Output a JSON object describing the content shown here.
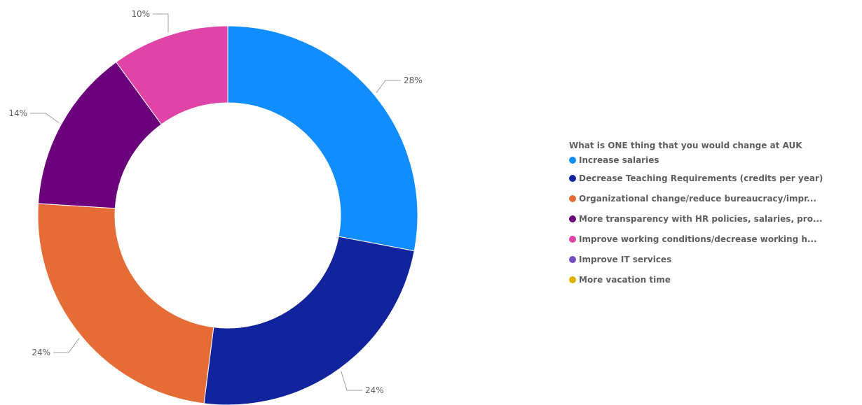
{
  "chart_data": {
    "type": "pie",
    "donut": true,
    "legend_position": "right",
    "legend_title": "What is ONE thing that you would change at AUK",
    "slices": [
      {
        "label": "Increase salaries",
        "display_label": "Increase salaries",
        "value": 28,
        "value_label": "28%",
        "color": "#118dff"
      },
      {
        "label": "Decrease Teaching Requirements (credits per year)",
        "display_label": "Decrease Teaching Requirements (credits per year)",
        "value": 24,
        "value_label": "24%",
        "color": "#12239e"
      },
      {
        "label": "Organizational change/reduce bureaucracy/impr...",
        "display_label": "Organizational change/reduce bureaucracy/impr...",
        "value": 24,
        "value_label": "24%",
        "color": "#e66c37"
      },
      {
        "label": "More transparency with HR policies, salaries, pro...",
        "display_label": "More transparency with HR policies, salaries, pro...",
        "value": 14,
        "value_label": "14%",
        "color": "#6b007b"
      },
      {
        "label": "Improve working conditions/decrease working h...",
        "display_label": "Improve working conditions/decrease working h...",
        "value": 10,
        "value_label": "10%",
        "color": "#e044a7"
      },
      {
        "label": "Improve IT services",
        "display_label": "Improve IT services",
        "value": 0,
        "value_label": "",
        "color": "#744ec2"
      },
      {
        "label": "More vacation time",
        "display_label": "More vacation time",
        "value": 0,
        "value_label": "",
        "color": "#d9b300"
      }
    ]
  }
}
